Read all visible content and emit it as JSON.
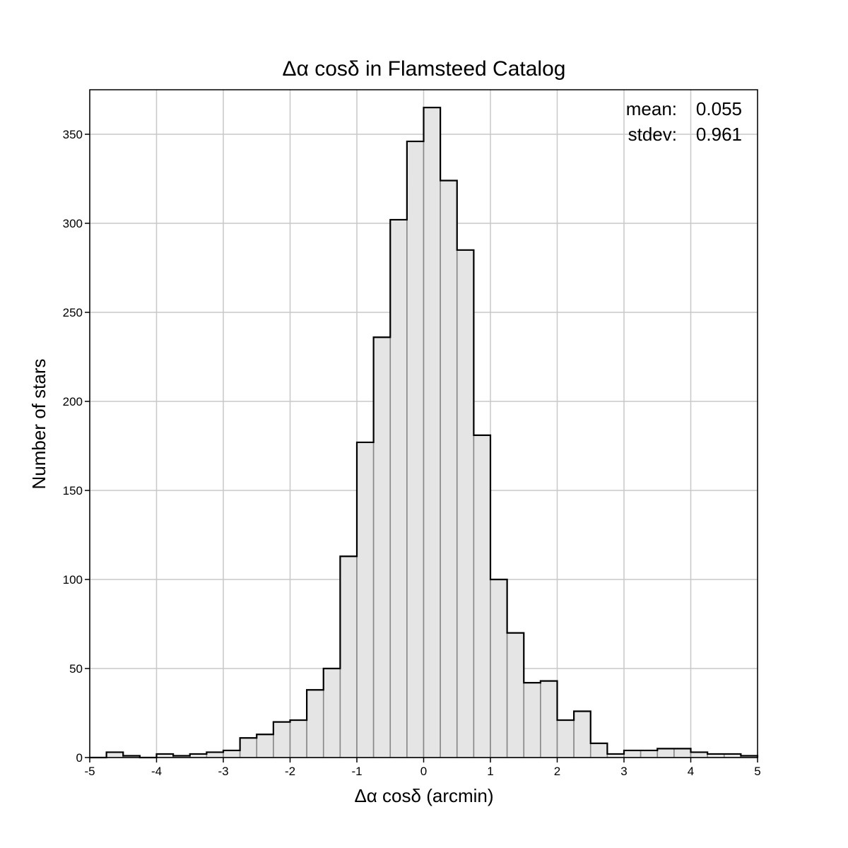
{
  "chart_data": {
    "type": "bar",
    "title": "Δα cosδ in Flamsteed Catalog",
    "xlabel": "Δα cosδ (arcmin)",
    "ylabel": "Number of stars",
    "xlim": [
      -5,
      5
    ],
    "ylim": [
      0,
      375
    ],
    "grid": true,
    "bin_width": 0.25,
    "bin_start": -5,
    "x_ticks": [
      -5,
      -4,
      -3,
      -2,
      -1,
      0,
      1,
      2,
      3,
      4,
      5
    ],
    "x_tick_labels": [
      "-5",
      "-4",
      "-3",
      "-2",
      "-1",
      "0",
      "1",
      "2",
      "3",
      "4",
      "5"
    ],
    "y_ticks": [
      0,
      50,
      100,
      150,
      200,
      250,
      300,
      350
    ],
    "y_tick_labels": [
      "0",
      "50",
      "100",
      "150",
      "200",
      "250",
      "300",
      "350"
    ],
    "values": [
      0,
      3,
      1,
      0,
      2,
      1,
      2,
      3,
      4,
      11,
      13,
      20,
      21,
      38,
      50,
      113,
      177,
      236,
      302,
      346,
      365,
      324,
      285,
      181,
      100,
      70,
      42,
      43,
      21,
      26,
      8,
      2,
      4,
      4,
      5,
      5,
      3,
      2,
      2,
      1
    ],
    "stats": [
      {
        "label": "mean:",
        "value": "0.055"
      },
      {
        "label": "stdev:",
        "value": "0.961"
      }
    ]
  }
}
